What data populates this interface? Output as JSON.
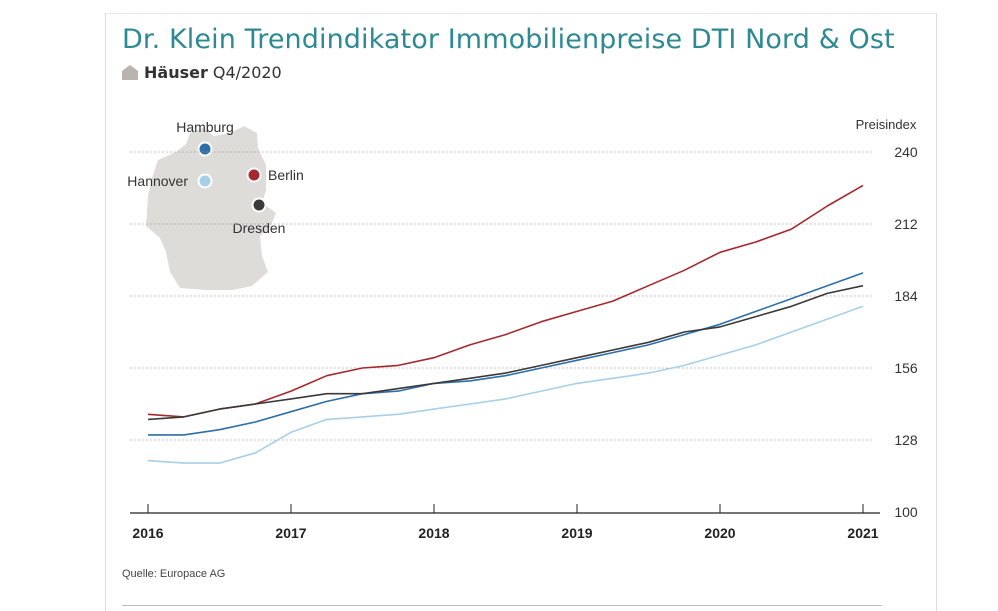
{
  "header": {
    "title": "Dr. Klein Trendindikator Immobilienpreise DTI Nord & Ost",
    "subtitle_bold": "Häuser",
    "subtitle_rest": "Q4/2020"
  },
  "source": "Quelle: Europace AG",
  "map": {
    "cities": [
      {
        "name": "Hamburg",
        "color": "#2e6fa8"
      },
      {
        "name": "Berlin",
        "color": "#a52a2f"
      },
      {
        "name": "Hannover",
        "color": "#a8cfe8"
      },
      {
        "name": "Dresden",
        "color": "#3a3a3a"
      }
    ]
  },
  "colors": {
    "title": "#2d8a93",
    "grid": "#999999",
    "axis": "#222222"
  },
  "chart_data": {
    "type": "line",
    "ylabel": "Preisindex",
    "ylim": [
      100,
      240
    ],
    "yticks": [
      100,
      128,
      156,
      184,
      212,
      240
    ],
    "xlim": [
      2016,
      2021
    ],
    "xticks": [
      "2016",
      "2017",
      "2018",
      "2019",
      "2020",
      "2021"
    ],
    "grid": true,
    "series": [
      {
        "name": "Berlin",
        "color": "#a52a2f",
        "x": [
          2016.0,
          2016.25,
          2016.5,
          2016.75,
          2017.0,
          2017.25,
          2017.5,
          2017.75,
          2018.0,
          2018.25,
          2018.5,
          2018.75,
          2019.0,
          2019.25,
          2019.5,
          2019.75,
          2020.0,
          2020.25,
          2020.5,
          2020.75,
          2021.0
        ],
        "y": [
          138,
          137,
          140,
          142,
          147,
          153,
          156,
          157,
          160,
          165,
          169,
          174,
          178,
          182,
          188,
          194,
          201,
          205,
          210,
          219,
          227
        ]
      },
      {
        "name": "Hamburg",
        "color": "#2e6fa8",
        "x": [
          2016.0,
          2016.25,
          2016.5,
          2016.75,
          2017.0,
          2017.25,
          2017.5,
          2017.75,
          2018.0,
          2018.25,
          2018.5,
          2018.75,
          2019.0,
          2019.25,
          2019.5,
          2019.75,
          2020.0,
          2020.25,
          2020.5,
          2020.75,
          2021.0
        ],
        "y": [
          130,
          130,
          132,
          135,
          139,
          143,
          146,
          147,
          150,
          151,
          153,
          156,
          159,
          162,
          165,
          169,
          173,
          178,
          183,
          188,
          193
        ]
      },
      {
        "name": "Dresden",
        "color": "#3a3a3a",
        "x": [
          2016.0,
          2016.25,
          2016.5,
          2016.75,
          2017.0,
          2017.25,
          2017.5,
          2017.75,
          2018.0,
          2018.25,
          2018.5,
          2018.75,
          2019.0,
          2019.25,
          2019.5,
          2019.75,
          2020.0,
          2020.25,
          2020.5,
          2020.75,
          2021.0
        ],
        "y": [
          136,
          137,
          140,
          142,
          144,
          146,
          146,
          148,
          150,
          152,
          154,
          157,
          160,
          163,
          166,
          170,
          172,
          176,
          180,
          185,
          188
        ]
      },
      {
        "name": "Hannover",
        "color": "#a8cfe8",
        "x": [
          2016.0,
          2016.25,
          2016.5,
          2016.75,
          2017.0,
          2017.25,
          2017.5,
          2017.75,
          2018.0,
          2018.25,
          2018.5,
          2018.75,
          2019.0,
          2019.25,
          2019.5,
          2019.75,
          2020.0,
          2020.25,
          2020.5,
          2020.75,
          2021.0
        ],
        "y": [
          120,
          119,
          119,
          123,
          131,
          136,
          137,
          138,
          140,
          142,
          144,
          147,
          150,
          152,
          154,
          157,
          161,
          165,
          170,
          175,
          180
        ]
      }
    ]
  }
}
